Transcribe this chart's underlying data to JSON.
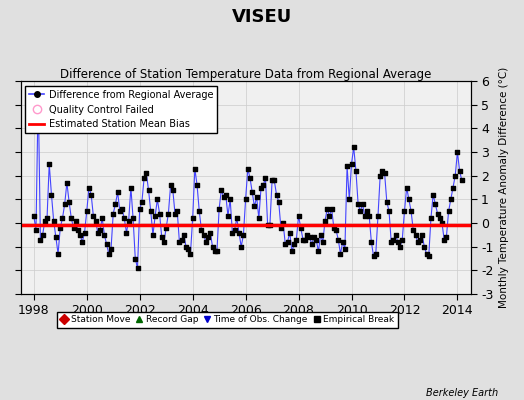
{
  "title": "VISEU",
  "subtitle": "Difference of Station Temperature Data from Regional Average",
  "ylabel_right": "Monthly Temperature Anomaly Difference (°C)",
  "bias": -0.07,
  "xlim": [
    1997.5,
    2014.5
  ],
  "ylim": [
    -3,
    6
  ],
  "yticks": [
    -3,
    -2,
    -1,
    0,
    1,
    2,
    3,
    4,
    5,
    6
  ],
  "xticks": [
    1998,
    2000,
    2002,
    2004,
    2006,
    2008,
    2010,
    2012,
    2014
  ],
  "fig_bg_color": "#e0e0e0",
  "plot_bg_color": "#f0f0f0",
  "line_color": "#4444ff",
  "dot_color": "#000000",
  "bias_color": "#ff0000",
  "grid_color": "#cccccc",
  "watermark": "Berkeley Earth",
  "time_series": [
    [
      1998.0,
      0.3
    ],
    [
      1998.083,
      -0.3
    ],
    [
      1998.167,
      5.5
    ],
    [
      1998.25,
      -0.7
    ],
    [
      1998.333,
      -0.5
    ],
    [
      1998.417,
      0.1
    ],
    [
      1998.5,
      0.2
    ],
    [
      1998.583,
      2.5
    ],
    [
      1998.667,
      1.2
    ],
    [
      1998.75,
      0.1
    ],
    [
      1998.833,
      -0.6
    ],
    [
      1998.917,
      -1.3
    ],
    [
      1999.0,
      -0.2
    ],
    [
      1999.083,
      0.2
    ],
    [
      1999.167,
      0.8
    ],
    [
      1999.25,
      1.7
    ],
    [
      1999.333,
      0.9
    ],
    [
      1999.417,
      0.2
    ],
    [
      1999.5,
      -0.2
    ],
    [
      1999.583,
      0.1
    ],
    [
      1999.667,
      -0.3
    ],
    [
      1999.75,
      -0.5
    ],
    [
      1999.833,
      -0.8
    ],
    [
      1999.917,
      -0.4
    ],
    [
      2000.0,
      0.5
    ],
    [
      2000.083,
      1.5
    ],
    [
      2000.167,
      1.2
    ],
    [
      2000.25,
      0.3
    ],
    [
      2000.333,
      0.1
    ],
    [
      2000.417,
      -0.4
    ],
    [
      2000.5,
      -0.3
    ],
    [
      2000.583,
      0.2
    ],
    [
      2000.667,
      -0.5
    ],
    [
      2000.75,
      -0.9
    ],
    [
      2000.833,
      -1.3
    ],
    [
      2000.917,
      -1.1
    ],
    [
      2001.0,
      0.4
    ],
    [
      2001.083,
      0.8
    ],
    [
      2001.167,
      1.3
    ],
    [
      2001.25,
      0.5
    ],
    [
      2001.333,
      0.6
    ],
    [
      2001.417,
      0.2
    ],
    [
      2001.5,
      -0.4
    ],
    [
      2001.583,
      0.1
    ],
    [
      2001.667,
      1.5
    ],
    [
      2001.75,
      0.2
    ],
    [
      2001.833,
      -1.5
    ],
    [
      2001.917,
      -1.9
    ],
    [
      2002.0,
      0.6
    ],
    [
      2002.083,
      0.9
    ],
    [
      2002.167,
      1.9
    ],
    [
      2002.25,
      2.1
    ],
    [
      2002.333,
      1.4
    ],
    [
      2002.417,
      0.5
    ],
    [
      2002.5,
      -0.5
    ],
    [
      2002.583,
      0.3
    ],
    [
      2002.667,
      1.0
    ],
    [
      2002.75,
      0.4
    ],
    [
      2002.833,
      -0.6
    ],
    [
      2002.917,
      -0.8
    ],
    [
      2003.0,
      -0.2
    ],
    [
      2003.083,
      0.4
    ],
    [
      2003.167,
      1.6
    ],
    [
      2003.25,
      1.4
    ],
    [
      2003.333,
      0.4
    ],
    [
      2003.417,
      0.5
    ],
    [
      2003.5,
      -0.8
    ],
    [
      2003.583,
      -0.7
    ],
    [
      2003.667,
      -0.5
    ],
    [
      2003.75,
      -1.0
    ],
    [
      2003.833,
      -1.1
    ],
    [
      2003.917,
      -1.3
    ],
    [
      2004.0,
      0.2
    ],
    [
      2004.083,
      2.3
    ],
    [
      2004.167,
      1.6
    ],
    [
      2004.25,
      0.5
    ],
    [
      2004.333,
      -0.3
    ],
    [
      2004.417,
      -0.5
    ],
    [
      2004.5,
      -0.8
    ],
    [
      2004.583,
      -0.6
    ],
    [
      2004.667,
      -0.4
    ],
    [
      2004.75,
      -1.0
    ],
    [
      2004.833,
      -1.2
    ],
    [
      2004.917,
      -1.2
    ],
    [
      2005.0,
      0.6
    ],
    [
      2005.083,
      1.4
    ],
    [
      2005.167,
      1.1
    ],
    [
      2005.25,
      1.2
    ],
    [
      2005.333,
      0.3
    ],
    [
      2005.417,
      1.0
    ],
    [
      2005.5,
      -0.4
    ],
    [
      2005.583,
      -0.3
    ],
    [
      2005.667,
      0.2
    ],
    [
      2005.75,
      -0.4
    ],
    [
      2005.833,
      -1.0
    ],
    [
      2005.917,
      -0.5
    ],
    [
      2006.0,
      1.0
    ],
    [
      2006.083,
      2.3
    ],
    [
      2006.167,
      1.9
    ],
    [
      2006.25,
      1.3
    ],
    [
      2006.333,
      0.7
    ],
    [
      2006.417,
      1.1
    ],
    [
      2006.5,
      0.2
    ],
    [
      2006.583,
      1.5
    ],
    [
      2006.667,
      1.6
    ],
    [
      2006.75,
      1.9
    ],
    [
      2006.833,
      -0.1
    ],
    [
      2006.917,
      -0.1
    ],
    [
      2007.0,
      1.8
    ],
    [
      2007.083,
      1.8
    ],
    [
      2007.167,
      1.2
    ],
    [
      2007.25,
      0.9
    ],
    [
      2007.333,
      -0.2
    ],
    [
      2007.417,
      0.0
    ],
    [
      2007.5,
      -0.9
    ],
    [
      2007.583,
      -0.8
    ],
    [
      2007.667,
      -0.4
    ],
    [
      2007.75,
      -1.2
    ],
    [
      2007.833,
      -0.9
    ],
    [
      2007.917,
      -0.7
    ],
    [
      2008.0,
      0.3
    ],
    [
      2008.083,
      -0.2
    ],
    [
      2008.167,
      -0.7
    ],
    [
      2008.25,
      -0.7
    ],
    [
      2008.333,
      -0.5
    ],
    [
      2008.417,
      -0.6
    ],
    [
      2008.5,
      -0.9
    ],
    [
      2008.583,
      -0.6
    ],
    [
      2008.667,
      -0.7
    ],
    [
      2008.75,
      -1.2
    ],
    [
      2008.833,
      -0.5
    ],
    [
      2008.917,
      -0.8
    ],
    [
      2009.0,
      0.1
    ],
    [
      2009.083,
      0.6
    ],
    [
      2009.167,
      0.3
    ],
    [
      2009.25,
      0.6
    ],
    [
      2009.333,
      -0.2
    ],
    [
      2009.417,
      -0.3
    ],
    [
      2009.5,
      -0.7
    ],
    [
      2009.583,
      -1.3
    ],
    [
      2009.667,
      -0.8
    ],
    [
      2009.75,
      -1.1
    ],
    [
      2009.833,
      2.4
    ],
    [
      2009.917,
      1.0
    ],
    [
      2010.0,
      2.5
    ],
    [
      2010.083,
      3.2
    ],
    [
      2010.167,
      2.2
    ],
    [
      2010.25,
      0.8
    ],
    [
      2010.333,
      0.5
    ],
    [
      2010.417,
      0.8
    ],
    [
      2010.5,
      0.3
    ],
    [
      2010.583,
      0.5
    ],
    [
      2010.667,
      0.3
    ],
    [
      2010.75,
      -0.8
    ],
    [
      2010.833,
      -1.4
    ],
    [
      2010.917,
      -1.3
    ],
    [
      2011.0,
      0.3
    ],
    [
      2011.083,
      2.0
    ],
    [
      2011.167,
      2.2
    ],
    [
      2011.25,
      2.1
    ],
    [
      2011.333,
      0.9
    ],
    [
      2011.417,
      0.5
    ],
    [
      2011.5,
      -0.8
    ],
    [
      2011.583,
      -0.7
    ],
    [
      2011.667,
      -0.5
    ],
    [
      2011.75,
      -0.8
    ],
    [
      2011.833,
      -1.0
    ],
    [
      2011.917,
      -0.7
    ],
    [
      2012.0,
      0.5
    ],
    [
      2012.083,
      1.5
    ],
    [
      2012.167,
      1.0
    ],
    [
      2012.25,
      0.5
    ],
    [
      2012.333,
      -0.3
    ],
    [
      2012.417,
      -0.5
    ],
    [
      2012.5,
      -0.8
    ],
    [
      2012.583,
      -0.7
    ],
    [
      2012.667,
      -0.5
    ],
    [
      2012.75,
      -1.0
    ],
    [
      2012.833,
      -1.3
    ],
    [
      2012.917,
      -1.4
    ],
    [
      2013.0,
      0.2
    ],
    [
      2013.083,
      1.2
    ],
    [
      2013.167,
      0.8
    ],
    [
      2013.25,
      0.4
    ],
    [
      2013.333,
      0.2
    ],
    [
      2013.417,
      0.0
    ],
    [
      2013.5,
      -0.7
    ],
    [
      2013.583,
      -0.6
    ],
    [
      2013.667,
      0.5
    ],
    [
      2013.75,
      1.0
    ],
    [
      2013.833,
      1.5
    ],
    [
      2013.917,
      2.0
    ],
    [
      2014.0,
      3.0
    ],
    [
      2014.083,
      2.2
    ],
    [
      2014.167,
      1.8
    ]
  ]
}
